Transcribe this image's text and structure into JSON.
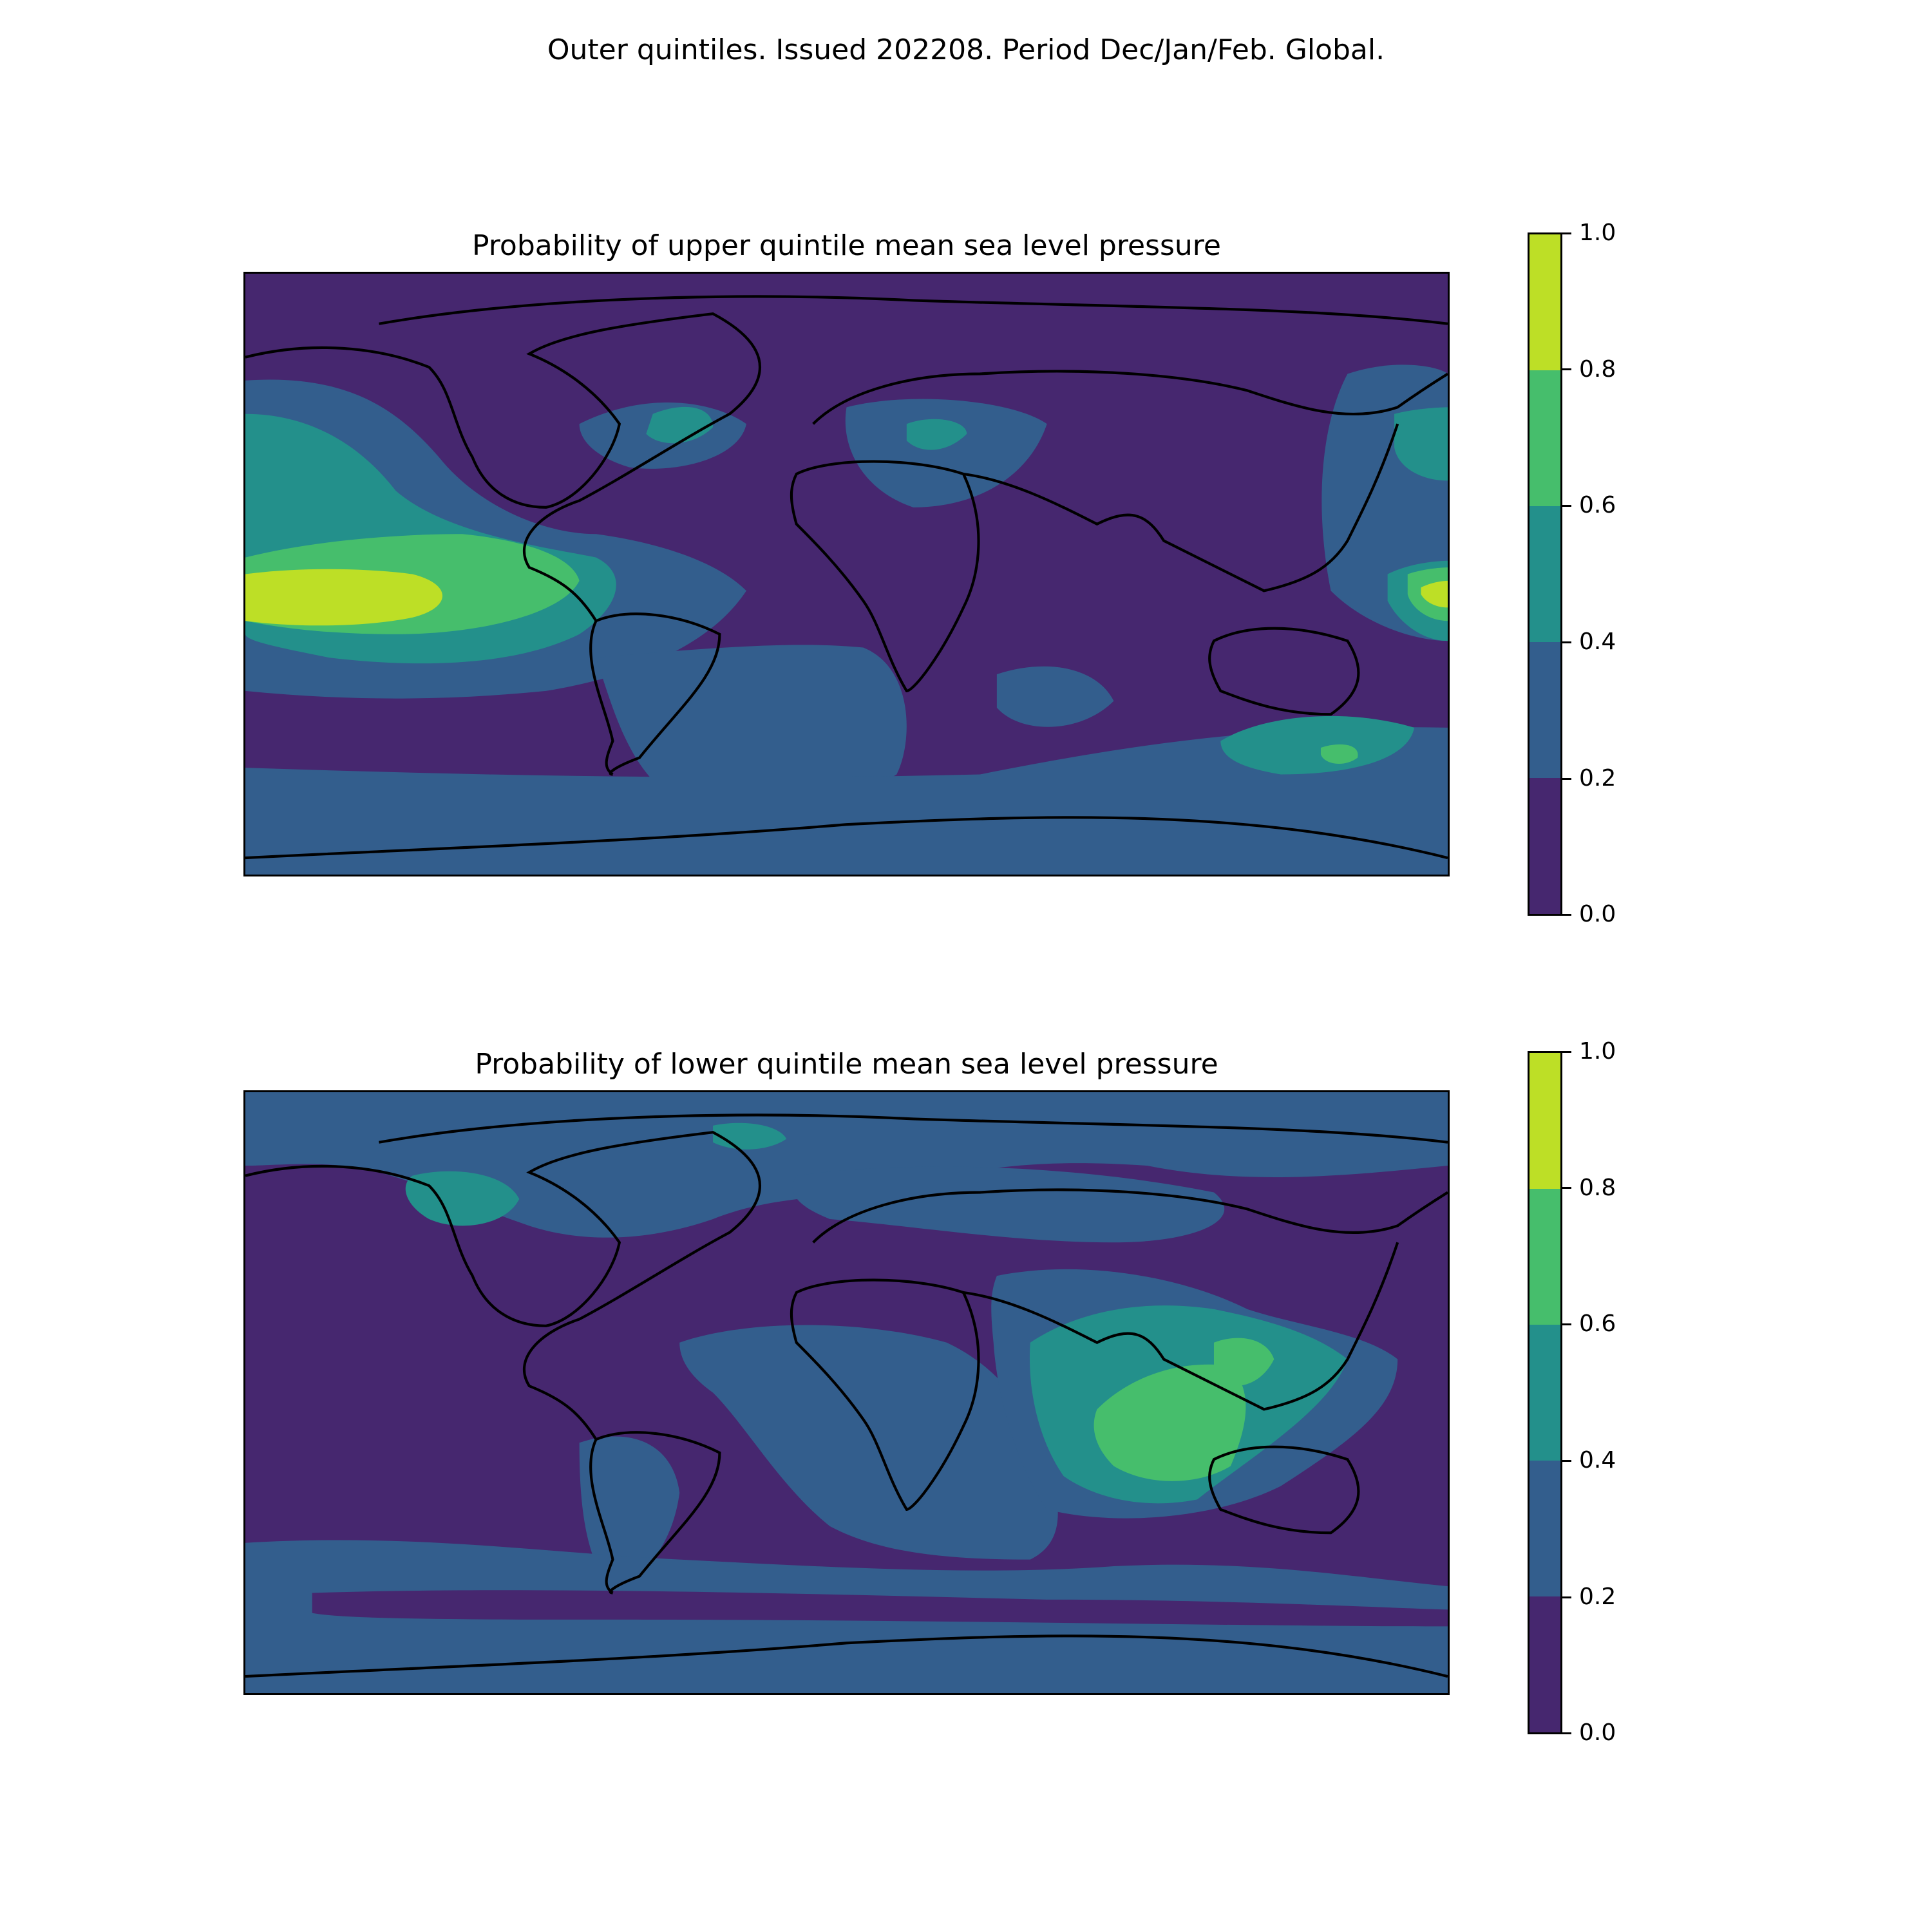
{
  "figure": {
    "title": "Outer quintiles. Issued 202208. Period Dec/Jan/Feb. Global."
  },
  "colorbar": {
    "levels": [
      0.0,
      0.2,
      0.4,
      0.6,
      0.8,
      1.0
    ],
    "tick_labels": [
      "0.0",
      "0.2",
      "0.4",
      "0.6",
      "0.8",
      "1.0"
    ],
    "colors": [
      "#46276f",
      "#335e8d",
      "#23908b",
      "#46be6c",
      "#bddf26"
    ]
  },
  "panels": [
    {
      "title": "Probability of upper quintile mean sea level pressure",
      "base_level": "0.0-0.2",
      "regions": [
        {
          "name": "north-pacific-band",
          "level": "0.2-0.4"
        },
        {
          "name": "east-pacific-0.4",
          "level": "0.4-0.6"
        },
        {
          "name": "east-pacific-0.6",
          "level": "0.6-0.8"
        },
        {
          "name": "east-pacific-max",
          "level": "0.8-1.0"
        },
        {
          "name": "south-atlantic",
          "level": "0.2-0.4"
        },
        {
          "name": "north-atlantic",
          "level": "0.2-0.4"
        },
        {
          "name": "north-atlantic-core",
          "level": "0.4-0.6"
        },
        {
          "name": "mediterranean",
          "level": "0.2-0.4"
        },
        {
          "name": "mediterranean-core",
          "level": "0.4-0.6"
        },
        {
          "name": "west-pacific",
          "level": "0.2-0.4"
        },
        {
          "name": "west-pacific-core",
          "level": "0.4-0.6"
        },
        {
          "name": "west-pacific-max",
          "level": "0.8-1.0"
        },
        {
          "name": "southern-ocean",
          "level": "0.2-0.4"
        },
        {
          "name": "tasman-core",
          "level": "0.4-0.6"
        }
      ]
    },
    {
      "title": "Probability of lower quintile mean sea level pressure",
      "base_level": "0.0-0.2",
      "regions": [
        {
          "name": "arctic-band",
          "level": "0.2-0.4"
        },
        {
          "name": "canada",
          "level": "0.4-0.6"
        },
        {
          "name": "eurasia-north",
          "level": "0.2-0.4"
        },
        {
          "name": "tropical-atlantic-africa",
          "level": "0.2-0.4"
        },
        {
          "name": "indian-ocean",
          "level": "0.2-0.4"
        },
        {
          "name": "indian-ocean-core",
          "level": "0.4-0.6"
        },
        {
          "name": "indian-ocean-max",
          "level": "0.6-0.8"
        },
        {
          "name": "southern-ocean",
          "level": "0.2-0.4"
        },
        {
          "name": "antarctic-coast",
          "level": "0.2-0.4"
        }
      ]
    }
  ]
}
